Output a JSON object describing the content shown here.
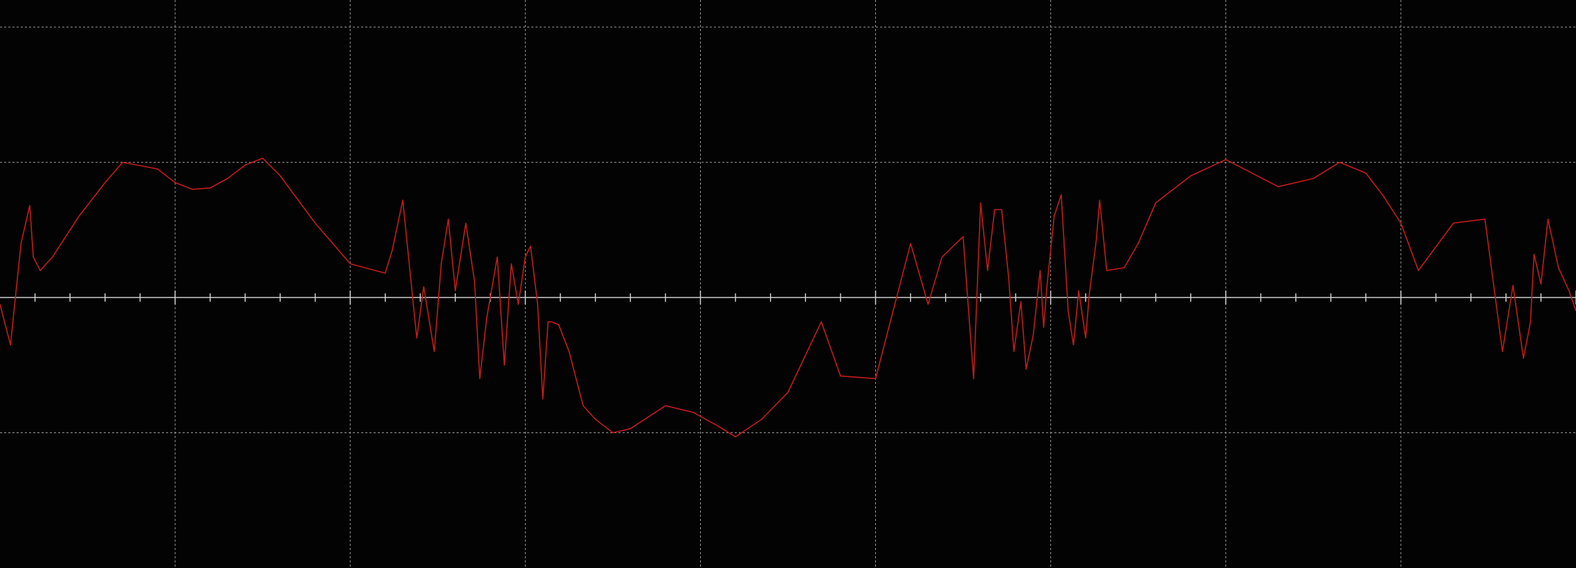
{
  "chart_data": {
    "type": "line",
    "title": "",
    "xlabel": "",
    "ylabel": "",
    "grid": true,
    "xlim": [
      0,
      9
    ],
    "ylim": [
      -2,
      2.2
    ],
    "x_gridlines": [
      1,
      2,
      3,
      4,
      5,
      6,
      7,
      8
    ],
    "y_gridlines": [
      -1,
      1,
      2
    ],
    "zero_axis": true,
    "minor_tick_step": 0.2,
    "colors": {
      "background": "#030303",
      "grid": "#9a9a9a",
      "axis": "#d0d0d0",
      "trace": "#c41c1c"
    },
    "series": [
      {
        "x": [
          0.0,
          0.06,
          0.08,
          0.12,
          0.17,
          0.19,
          0.23,
          0.3,
          0.45,
          0.6,
          0.7,
          0.82,
          0.9,
          1.0,
          1.1,
          1.2,
          1.3,
          1.4,
          1.5,
          1.6,
          1.8,
          2.0,
          2.2,
          2.24,
          2.3,
          2.38,
          2.42,
          2.48,
          2.52,
          2.56,
          2.6,
          2.66,
          2.71,
          2.74,
          2.78,
          2.84,
          2.88,
          2.92,
          2.96,
          3.0,
          3.03,
          3.07,
          3.1,
          3.13,
          3.15,
          3.19,
          3.25,
          3.29,
          3.33,
          3.4,
          3.5,
          3.6,
          3.8,
          3.96,
          4.1,
          4.2,
          4.35,
          4.5,
          4.69,
          4.8,
          5.0,
          5.2,
          5.3,
          5.38,
          5.5,
          5.56,
          5.6,
          5.64,
          5.68,
          5.72,
          5.76,
          5.79,
          5.83,
          5.86,
          5.9,
          5.94,
          5.96,
          5.98,
          6.02,
          6.06,
          6.1,
          6.13,
          6.16,
          6.2,
          6.22,
          6.26,
          6.28,
          6.32,
          6.42,
          6.5,
          6.6,
          6.8,
          7.0,
          7.15,
          7.3,
          7.5,
          7.65,
          7.8,
          7.9,
          8.0,
          8.1,
          8.3,
          8.48,
          8.58,
          8.64,
          8.7,
          8.74,
          8.76,
          8.8,
          8.84,
          8.9,
          8.96,
          9.0
        ],
        "y": [
          -0.05,
          -0.35,
          -0.1,
          0.4,
          0.68,
          0.3,
          0.2,
          0.3,
          0.6,
          0.85,
          1.0,
          0.97,
          0.95,
          0.85,
          0.8,
          0.81,
          0.88,
          0.98,
          1.03,
          0.9,
          0.55,
          0.25,
          0.18,
          0.35,
          0.72,
          -0.3,
          0.08,
          -0.4,
          0.25,
          0.58,
          0.05,
          0.55,
          0.12,
          -0.6,
          -0.15,
          0.3,
          -0.5,
          0.25,
          -0.05,
          0.3,
          0.38,
          -0.05,
          -0.75,
          -0.18,
          -0.18,
          -0.2,
          -0.4,
          -0.6,
          -0.8,
          -0.9,
          -1.0,
          -0.97,
          -0.8,
          -0.85,
          -0.95,
          -1.03,
          -0.9,
          -0.7,
          -0.18,
          -0.58,
          -0.6,
          0.4,
          -0.05,
          0.3,
          0.45,
          -0.6,
          0.7,
          0.2,
          0.65,
          0.65,
          0.15,
          -0.4,
          -0.03,
          -0.53,
          -0.28,
          0.2,
          -0.22,
          0.1,
          0.6,
          0.76,
          -0.1,
          -0.35,
          0.05,
          -0.3,
          0.02,
          0.42,
          0.72,
          0.2,
          0.22,
          0.4,
          0.7,
          0.9,
          1.02,
          0.92,
          0.82,
          0.88,
          1.0,
          0.92,
          0.75,
          0.55,
          0.2,
          0.55,
          0.58,
          -0.4,
          0.09,
          -0.45,
          -0.18,
          0.32,
          0.1,
          0.58,
          0.22,
          0.05,
          -0.1
        ]
      }
    ]
  }
}
